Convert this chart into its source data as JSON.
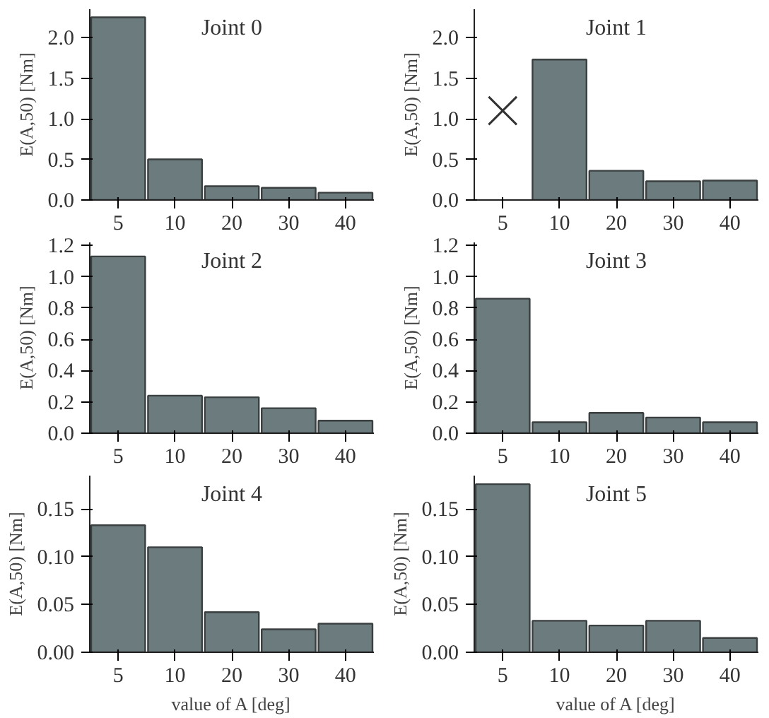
{
  "chart_data": [
    {
      "type": "bar",
      "title": "Joint 0",
      "ylabel": "E(A,50) [Nm]",
      "categories": [
        "5",
        "10",
        "20",
        "30",
        "40"
      ],
      "values": [
        2.25,
        0.5,
        0.17,
        0.15,
        0.09
      ],
      "color": "#6b7b7e",
      "ylim": [
        0,
        2.35
      ],
      "yticks": [
        {
          "value": 0,
          "label": "0.0"
        },
        {
          "value": 0.5,
          "label": "0.5"
        },
        {
          "value": 1,
          "label": "1.0"
        },
        {
          "value": 1.5,
          "label": "1.5"
        },
        {
          "value": 2,
          "label": "2.0"
        }
      ],
      "grid": false
    },
    {
      "type": "bar",
      "title": "Joint 1",
      "ylabel": "E(A,50) [Nm]",
      "categories": [
        "5",
        "10",
        "20",
        "30",
        "40"
      ],
      "series": [
        {
          "type": "bar",
          "color": "#6b7b7e",
          "values": [
            null,
            1.73,
            0.36,
            0.23,
            0.24
          ]
        },
        {
          "type": "scatter",
          "color": "#333333",
          "marker": "cross",
          "x": [
            "5"
          ],
          "values": [
            1.1
          ]
        }
      ],
      "ylim": [
        0,
        2.35
      ],
      "yticks": [
        {
          "value": 0,
          "label": "0.0"
        },
        {
          "value": 0.5,
          "label": "0.5"
        },
        {
          "value": 1,
          "label": "1.0"
        },
        {
          "value": 1.5,
          "label": "1.5"
        },
        {
          "value": 2,
          "label": "2.0"
        }
      ],
      "grid": false
    },
    {
      "type": "bar",
      "title": "Joint 2",
      "ylabel": "E(A,50) [Nm]",
      "categories": [
        "5",
        "10",
        "20",
        "30",
        "40"
      ],
      "values": [
        1.13,
        0.24,
        0.23,
        0.16,
        0.08
      ],
      "color": "#6b7b7e",
      "ylim": [
        0,
        1.22
      ],
      "yticks": [
        {
          "value": 0,
          "label": "0.0"
        },
        {
          "value": 0.2,
          "label": "0.2"
        },
        {
          "value": 0.4,
          "label": "0.4"
        },
        {
          "value": 0.6,
          "label": "0.6"
        },
        {
          "value": 0.8,
          "label": "0.8"
        },
        {
          "value": 1,
          "label": "1.0"
        },
        {
          "value": 1.2,
          "label": "1.2"
        }
      ],
      "grid": false
    },
    {
      "type": "bar",
      "title": "Joint 3",
      "ylabel": "E(A,50) [Nm]",
      "categories": [
        "5",
        "10",
        "20",
        "30",
        "40"
      ],
      "values": [
        0.86,
        0.07,
        0.13,
        0.1,
        0.07
      ],
      "color": "#6b7b7e",
      "ylim": [
        0,
        1.22
      ],
      "yticks": [
        {
          "value": 0,
          "label": "0.0"
        },
        {
          "value": 0.2,
          "label": "0.2"
        },
        {
          "value": 0.4,
          "label": "0.4"
        },
        {
          "value": 0.6,
          "label": "0.6"
        },
        {
          "value": 0.8,
          "label": "0.8"
        },
        {
          "value": 1,
          "label": "1.0"
        },
        {
          "value": 1.2,
          "label": "1.2"
        }
      ],
      "grid": false
    },
    {
      "type": "bar",
      "title": "Joint 4",
      "xlabel": "value of A [deg]",
      "ylabel": "E(A,50) [Nm]",
      "categories": [
        "5",
        "10",
        "20",
        "30",
        "40"
      ],
      "values": [
        0.133,
        0.11,
        0.042,
        0.024,
        0.03
      ],
      "color": "#6b7b7e",
      "ylim": [
        0,
        0.185
      ],
      "yticks": [
        {
          "value": 0,
          "label": "0.00"
        },
        {
          "value": 0.05,
          "label": "0.05"
        },
        {
          "value": 0.1,
          "label": "0.10"
        },
        {
          "value": 0.15,
          "label": "0.15"
        }
      ],
      "grid": false
    },
    {
      "type": "bar",
      "title": "Joint 5",
      "xlabel": "value of A [deg]",
      "ylabel": "E(A,50) [Nm]",
      "categories": [
        "5",
        "10",
        "20",
        "30",
        "40"
      ],
      "values": [
        0.176,
        0.033,
        0.028,
        0.033,
        0.015
      ],
      "color": "#6b7b7e",
      "ylim": [
        0,
        0.185
      ],
      "yticks": [
        {
          "value": 0,
          "label": "0.00"
        },
        {
          "value": 0.05,
          "label": "0.05"
        },
        {
          "value": 0.1,
          "label": "0.10"
        },
        {
          "value": 0.15,
          "label": "0.15"
        }
      ],
      "grid": false
    }
  ]
}
